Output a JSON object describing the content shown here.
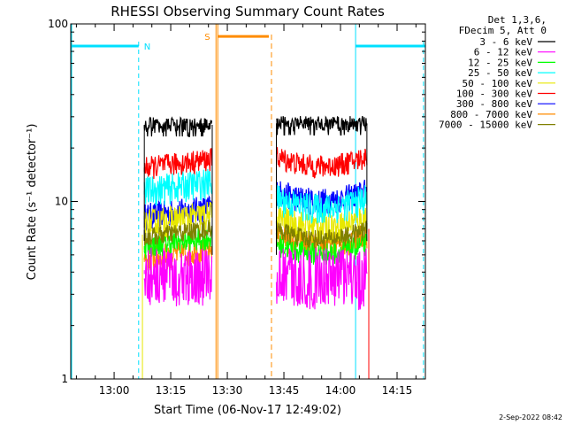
{
  "chart_data": {
    "type": "line",
    "title": "RHESSI Observing Summary Count Rates",
    "xlabel": "Start Time (06-Nov-17 12:49:02)",
    "ylabel": "Count Rate (s⁻¹ detector⁻¹)",
    "y_scale": "log",
    "ylim": [
      1,
      100
    ],
    "y_ticks": [
      "1",
      "10",
      "100"
    ],
    "x_ticks": [
      "13:00",
      "13:15",
      "13:30",
      "13:45",
      "14:00",
      "14:15"
    ],
    "x_range_min": [
      -11.5,
      82.5
    ],
    "timestamp": "2-Sep-2022 08:42",
    "legend_header": [
      "Det 1,3,6,",
      "FDecim 5, Att 0"
    ],
    "series": [
      {
        "name": "3 - 6 keV",
        "color": "#000000",
        "seg1": 27,
        "seg2": 27.5,
        "noise": 0.04
      },
      {
        "name": "6 - 12 keV",
        "color": "#ff00ff",
        "seg1": 4.1,
        "seg2": 4.0,
        "noise": 0.15
      },
      {
        "name": "12 - 25 keV",
        "color": "#00ff00",
        "seg1": 5.6,
        "seg2": 5.8,
        "noise": 0.06
      },
      {
        "name": "25 - 50 keV",
        "color": "#00ffff",
        "seg1": 11.5,
        "seg2": 10.5,
        "noise": 0.08
      },
      {
        "name": "50 - 100 keV",
        "color": "#e8e800",
        "seg1": 7.5,
        "seg2": 8.2,
        "noise": 0.08
      },
      {
        "name": "100 - 300 keV",
        "color": "#ff0000",
        "seg1": 15.5,
        "seg2": 18.0,
        "noise": 0.06
      },
      {
        "name": "300 - 800 keV",
        "color": "#0000ff",
        "seg1": 8.3,
        "seg2": 11.5,
        "noise": 0.07
      },
      {
        "name": "800 - 7000 keV",
        "color": "#ff8c00",
        "seg1": 4.8,
        "seg2": 6.5,
        "noise": 0.07
      },
      {
        "name": "7000 - 15000 keV",
        "color": "#808000",
        "seg1": 6.3,
        "seg2": 7.0,
        "noise": 0.05
      }
    ],
    "data_segments_min": [
      [
        8,
        26
      ],
      [
        43,
        67
      ]
    ],
    "annotations": {
      "night_label": "N",
      "saa_label": "S",
      "night_color": "#00e0ff",
      "saa_color": "#ff8c00",
      "night_intervals_min": [
        [
          -11.5,
          6.5
        ],
        [
          64,
          82.5
        ]
      ],
      "saa_interval_min": [
        27,
        41
      ],
      "night_level": 75,
      "saa_level": 85
    }
  }
}
